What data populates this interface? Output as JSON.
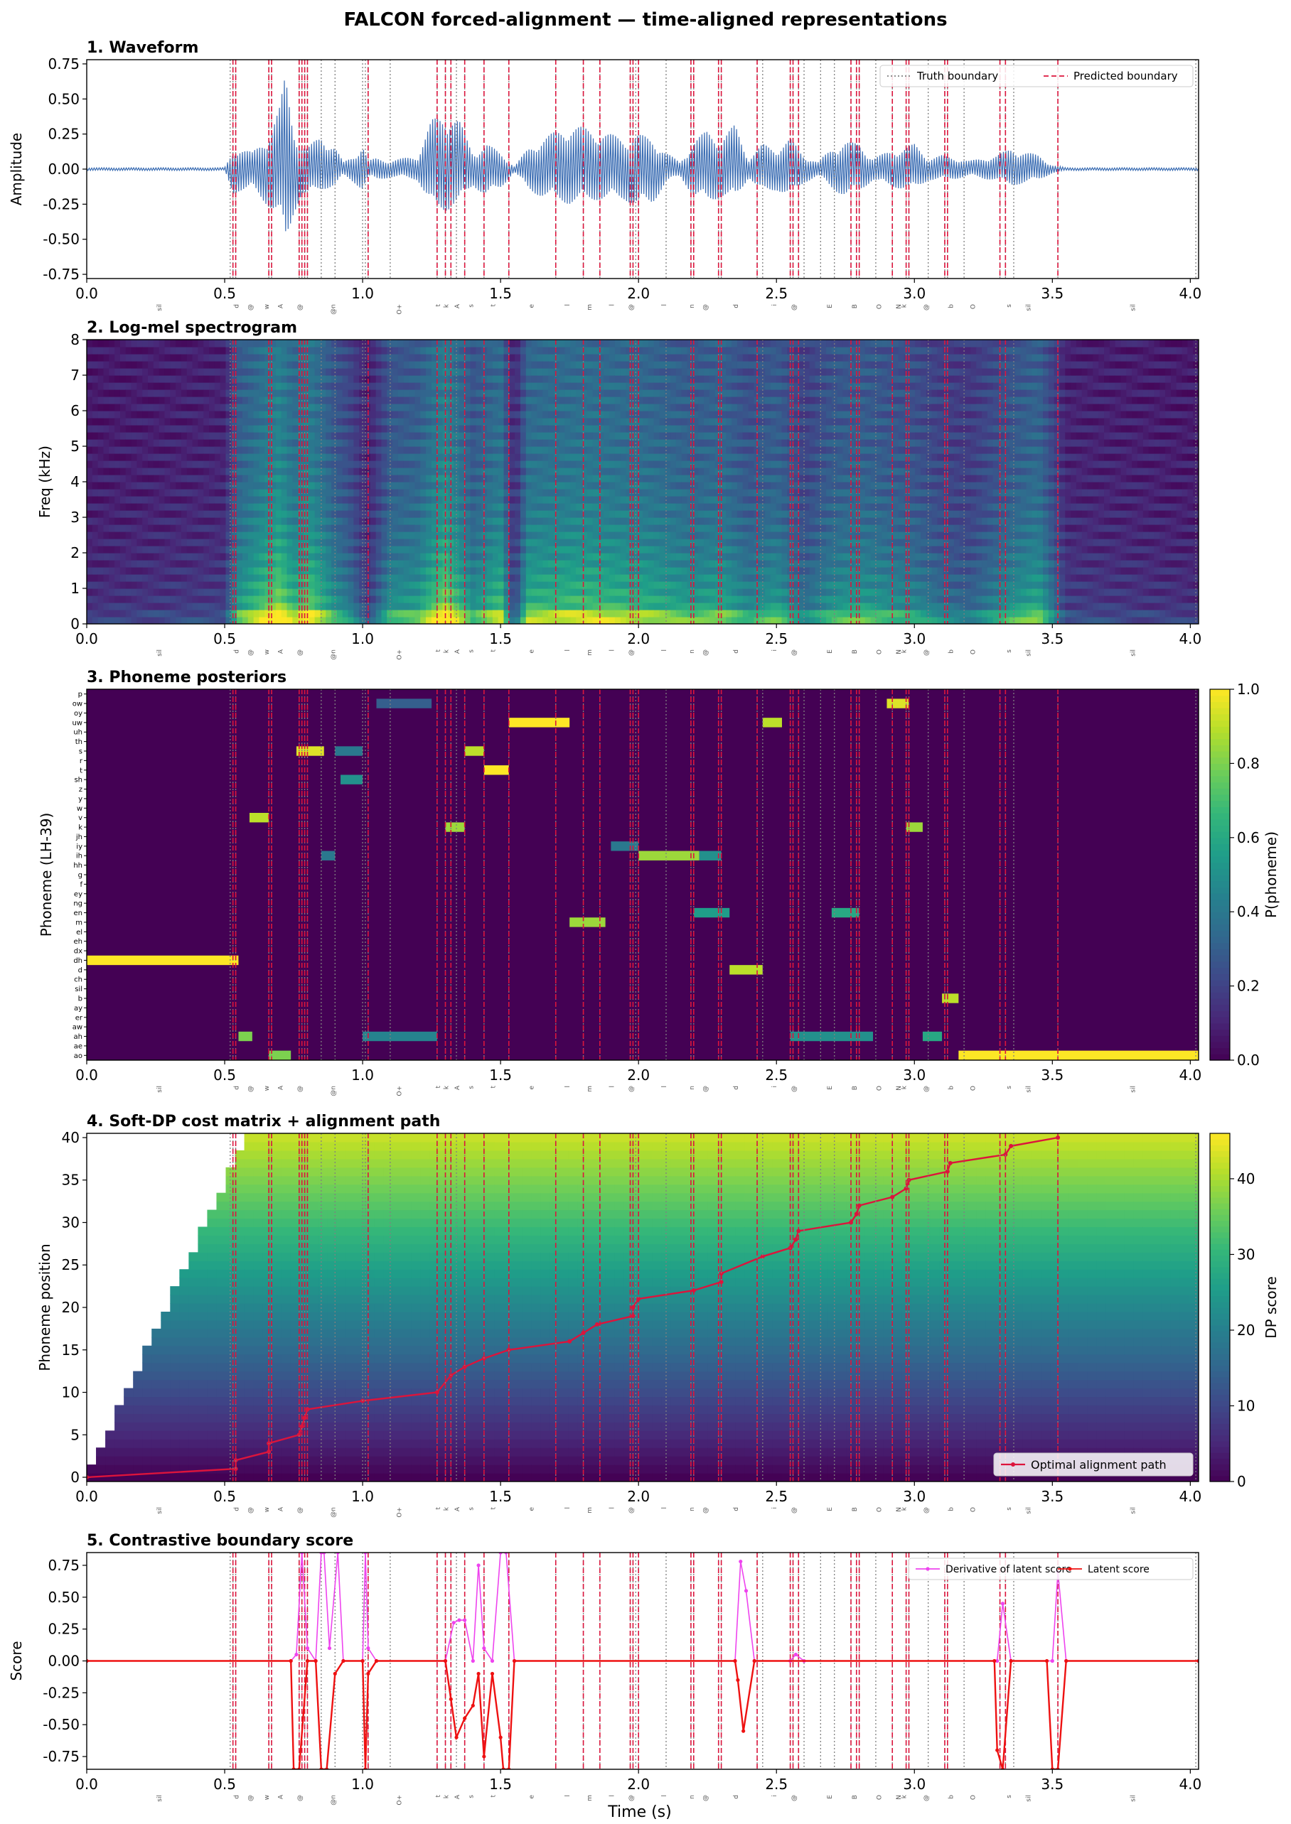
{
  "figure": {
    "title": "FALCON forced-alignment — time-aligned representations",
    "xlabel": "Time (s)"
  },
  "colors": {
    "waveform": "#3b6db3",
    "truth_boundary": "#808080",
    "predicted_boundary": "#dc143c",
    "alignment_path": "#dc143c",
    "derivative": "#ee44ee",
    "latent": "#ee1111"
  },
  "chart_data": [
    {
      "type": "line",
      "title": "1. Waveform",
      "ylabel": "Amplitude",
      "xlim": [
        0,
        4.03
      ],
      "ylim": [
        -0.78,
        0.78
      ],
      "x_ticks": [
        0.0,
        0.5,
        1.0,
        1.5,
        2.0,
        2.5,
        3.0,
        3.5,
        4.0
      ],
      "y_ticks": [
        -0.75,
        -0.5,
        -0.25,
        0.0,
        0.25,
        0.5,
        0.75
      ],
      "legend": {
        "placement": "upper-right",
        "entries": [
          "Truth boundary",
          "Predicted boundary"
        ]
      },
      "envelope": {
        "x": [
          0.0,
          0.5,
          0.53,
          0.55,
          0.6,
          0.65,
          0.7,
          0.72,
          0.75,
          0.78,
          0.8,
          0.85,
          0.9,
          0.93,
          0.97,
          1.0,
          1.02,
          1.05,
          1.1,
          1.15,
          1.2,
          1.25,
          1.3,
          1.35,
          1.4,
          1.45,
          1.5,
          1.55,
          1.6,
          1.65,
          1.75,
          1.85,
          1.95,
          2.0,
          2.05,
          2.1,
          2.15,
          2.2,
          2.25,
          2.3,
          2.35,
          2.4,
          2.45,
          2.5,
          2.55,
          2.6,
          2.65,
          2.7,
          2.75,
          2.8,
          2.85,
          2.9,
          2.95,
          3.0,
          3.05,
          3.1,
          3.15,
          3.2,
          3.25,
          3.3,
          3.35,
          3.45,
          3.5,
          3.55,
          4.03
        ],
        "upper": [
          0.01,
          0.01,
          0.13,
          0.16,
          0.12,
          0.22,
          0.45,
          0.68,
          0.3,
          0.18,
          0.15,
          0.25,
          0.16,
          0.05,
          0.1,
          0.18,
          0.06,
          0.08,
          0.06,
          0.08,
          0.1,
          0.35,
          0.42,
          0.35,
          0.12,
          0.18,
          0.12,
          0.02,
          0.15,
          0.22,
          0.32,
          0.28,
          0.22,
          0.25,
          0.22,
          0.12,
          0.05,
          0.2,
          0.28,
          0.22,
          0.32,
          0.08,
          0.18,
          0.15,
          0.22,
          0.1,
          0.05,
          0.15,
          0.2,
          0.18,
          0.08,
          0.12,
          0.15,
          0.18,
          0.08,
          0.1,
          0.08,
          0.06,
          0.08,
          0.1,
          0.15,
          0.1,
          0.03,
          0.01,
          0.01
        ],
        "lower": [
          -0.01,
          -0.01,
          -0.18,
          -0.16,
          -0.15,
          -0.25,
          -0.35,
          -0.6,
          -0.32,
          -0.18,
          -0.2,
          -0.15,
          -0.12,
          -0.05,
          -0.1,
          -0.15,
          -0.06,
          -0.08,
          -0.06,
          -0.06,
          -0.08,
          -0.28,
          -0.3,
          -0.25,
          -0.12,
          -0.2,
          -0.14,
          -0.02,
          -0.15,
          -0.2,
          -0.25,
          -0.22,
          -0.22,
          -0.28,
          -0.25,
          -0.1,
          -0.05,
          -0.2,
          -0.24,
          -0.2,
          -0.22,
          -0.06,
          -0.18,
          -0.15,
          -0.2,
          -0.1,
          -0.05,
          -0.14,
          -0.2,
          -0.16,
          -0.08,
          -0.12,
          -0.14,
          -0.15,
          -0.08,
          -0.08,
          -0.07,
          -0.05,
          -0.07,
          -0.08,
          -0.12,
          -0.08,
          -0.03,
          -0.01,
          -0.01
        ]
      }
    },
    {
      "type": "heatmap",
      "title": "2. Log-mel spectrogram",
      "ylabel": "Freq (kHz)",
      "xlim": [
        0,
        4.03
      ],
      "ylim": [
        0,
        8
      ],
      "colormap": "viridis",
      "x_ticks": [
        0.0,
        0.5,
        1.0,
        1.5,
        2.0,
        2.5,
        3.0,
        3.5,
        4.0
      ],
      "y_ticks": [
        0,
        1,
        2,
        3,
        4,
        5,
        6,
        7,
        8
      ],
      "energy_profile": {
        "x": [
          0.0,
          0.5,
          0.55,
          0.7,
          0.75,
          0.8,
          0.9,
          0.95,
          1.02,
          1.1,
          1.2,
          1.3,
          1.4,
          1.5,
          1.55,
          1.6,
          1.8,
          2.0,
          2.2,
          2.3,
          2.4,
          2.5,
          2.6,
          2.7,
          2.8,
          3.0,
          3.1,
          3.2,
          3.35,
          3.45,
          3.55,
          4.03
        ],
        "level": [
          0.15,
          0.2,
          0.6,
          0.9,
          0.7,
          0.85,
          0.55,
          0.45,
          0.2,
          0.55,
          0.6,
          0.9,
          0.55,
          0.75,
          0.2,
          0.7,
          0.75,
          0.7,
          0.6,
          0.65,
          0.5,
          0.6,
          0.4,
          0.55,
          0.6,
          0.5,
          0.4,
          0.35,
          0.55,
          0.65,
          0.2,
          0.15
        ]
      }
    },
    {
      "type": "heatmap",
      "title": "3. Phoneme posteriors",
      "ylabel": "Phoneme (LH-39)",
      "xlim": [
        0,
        4.03
      ],
      "colormap": "viridis",
      "colorbar": {
        "label": "P(phoneme)",
        "range": [
          0,
          1
        ],
        "ticks": [
          "0.0",
          "0.2",
          "0.4",
          "0.6",
          "0.8",
          "1.0"
        ]
      },
      "x_ticks": [
        0.0,
        0.5,
        1.0,
        1.5,
        2.0,
        2.5,
        3.0,
        3.5,
        4.0
      ],
      "phonemes": [
        "p",
        "ow",
        "oy",
        "uw",
        "uh",
        "th",
        "s",
        "r",
        "t",
        "sh",
        "z",
        "y",
        "w",
        "v",
        "k",
        "jh",
        "iy",
        "ih",
        "hh",
        "g",
        "f",
        "ey",
        "ng",
        "en",
        "m",
        "el",
        "eh",
        "dx",
        "dh",
        "d",
        "ch",
        "sil",
        "b",
        "ay",
        "er",
        "aw",
        "ah",
        "ae",
        "ao"
      ],
      "segments": [
        {
          "phoneme": "dh",
          "start": 0.0,
          "end": 0.55,
          "p": 1.0
        },
        {
          "phoneme": "ah",
          "start": 0.55,
          "end": 0.6,
          "p": 0.8
        },
        {
          "phoneme": "v",
          "start": 0.59,
          "end": 0.66,
          "p": 0.9
        },
        {
          "phoneme": "ao",
          "start": 0.66,
          "end": 0.74,
          "p": 0.8
        },
        {
          "phoneme": "s",
          "start": 0.76,
          "end": 0.86,
          "p": 0.95
        },
        {
          "phoneme": "s",
          "start": 0.9,
          "end": 1.0,
          "p": 0.4
        },
        {
          "phoneme": "sh",
          "start": 0.92,
          "end": 1.0,
          "p": 0.5
        },
        {
          "phoneme": "ih",
          "start": 0.85,
          "end": 0.9,
          "p": 0.4
        },
        {
          "phoneme": "ah",
          "start": 1.0,
          "end": 1.27,
          "p": 0.45
        },
        {
          "phoneme": "ow",
          "start": 1.05,
          "end": 1.25,
          "p": 0.3
        },
        {
          "phoneme": "k",
          "start": 1.3,
          "end": 1.37,
          "p": 0.85
        },
        {
          "phoneme": "s",
          "start": 1.37,
          "end": 1.44,
          "p": 0.9
        },
        {
          "phoneme": "t",
          "start": 1.44,
          "end": 1.53,
          "p": 1.0
        },
        {
          "phoneme": "uw",
          "start": 1.53,
          "end": 1.75,
          "p": 1.0
        },
        {
          "phoneme": "m",
          "start": 1.75,
          "end": 1.88,
          "p": 0.85
        },
        {
          "phoneme": "iy",
          "start": 1.9,
          "end": 2.0,
          "p": 0.4
        },
        {
          "phoneme": "ih",
          "start": 2.0,
          "end": 2.22,
          "p": 0.85
        },
        {
          "phoneme": "ih",
          "start": 2.22,
          "end": 2.3,
          "p": 0.5
        },
        {
          "phoneme": "en",
          "start": 2.2,
          "end": 2.33,
          "p": 0.55
        },
        {
          "phoneme": "d",
          "start": 2.33,
          "end": 2.45,
          "p": 0.9
        },
        {
          "phoneme": "uw",
          "start": 2.45,
          "end": 2.52,
          "p": 0.9
        },
        {
          "phoneme": "ah",
          "start": 2.55,
          "end": 2.85,
          "p": 0.5
        },
        {
          "phoneme": "en",
          "start": 2.7,
          "end": 2.8,
          "p": 0.6
        },
        {
          "phoneme": "ow",
          "start": 2.9,
          "end": 2.98,
          "p": 0.95
        },
        {
          "phoneme": "k",
          "start": 2.97,
          "end": 3.03,
          "p": 0.85
        },
        {
          "phoneme": "ah",
          "start": 3.03,
          "end": 3.1,
          "p": 0.6
        },
        {
          "phoneme": "b",
          "start": 3.1,
          "end": 3.16,
          "p": 0.9
        },
        {
          "phoneme": "ao",
          "start": 3.16,
          "end": 4.03,
          "p": 1.0
        }
      ]
    },
    {
      "type": "heatmap",
      "title": "4. Soft-DP cost matrix + alignment path",
      "ylabel": "Phoneme position",
      "xlim": [
        0,
        4.03
      ],
      "ylim": [
        -0.5,
        40.5
      ],
      "colormap": "viridis",
      "colorbar": {
        "label": "DP score",
        "range": [
          0,
          46
        ],
        "ticks": [
          "0",
          "10",
          "20",
          "30",
          "40"
        ]
      },
      "x_ticks": [
        0.0,
        0.5,
        1.0,
        1.5,
        2.0,
        2.5,
        3.0,
        3.5,
        4.0
      ],
      "y_ticks": [
        0,
        5,
        10,
        15,
        20,
        25,
        30,
        35,
        40
      ],
      "legend": {
        "placement": "lower-right",
        "entries": [
          "Optimal alignment path"
        ]
      },
      "path": {
        "x": [
          0.0,
          0.54,
          0.54,
          0.66,
          0.66,
          0.77,
          0.78,
          0.79,
          0.8,
          1.0,
          1.27,
          1.32,
          1.37,
          1.44,
          1.53,
          1.75,
          1.8,
          1.85,
          1.98,
          1.98,
          2.0,
          2.2,
          2.3,
          2.3,
          2.45,
          2.55,
          2.57,
          2.58,
          2.77,
          2.79,
          2.8,
          2.92,
          2.97,
          2.98,
          3.12,
          3.13,
          3.33,
          3.35,
          3.52
        ],
        "y": [
          0,
          1,
          2,
          3,
          4,
          5,
          6,
          7,
          8,
          9,
          10,
          12,
          13,
          14,
          15,
          16,
          17,
          18,
          19,
          20,
          21,
          22,
          23,
          24,
          26,
          27,
          28,
          29,
          30,
          31,
          32,
          33,
          34,
          35,
          36,
          37,
          38,
          39,
          40
        ]
      }
    },
    {
      "type": "line",
      "title": "5. Contrastive boundary score",
      "ylabel": "Score",
      "xlim": [
        0,
        4.03
      ],
      "ylim": [
        -0.85,
        0.85
      ],
      "x_ticks": [
        0.0,
        0.5,
        1.0,
        1.5,
        2.0,
        2.5,
        3.0,
        3.5,
        4.0
      ],
      "y_ticks": [
        -0.75,
        -0.5,
        -0.25,
        0.0,
        0.25,
        0.5,
        0.75
      ],
      "legend": {
        "placement": "upper-right",
        "entries": [
          "Derivative of latent score",
          "Latent score"
        ]
      },
      "series": [
        {
          "name": "Derivative of latent score",
          "x": [
            0.0,
            0.74,
            0.76,
            0.78,
            0.8,
            0.83,
            0.85,
            0.86,
            0.88,
            0.91,
            0.93,
            1.0,
            1.01,
            1.02,
            1.05,
            1.3,
            1.33,
            1.35,
            1.37,
            1.4,
            1.42,
            1.44,
            1.47,
            1.5,
            1.52,
            1.55,
            2.35,
            2.37,
            2.39,
            2.42,
            2.55,
            2.57,
            2.6,
            3.3,
            3.32,
            3.35,
            3.5,
            3.52,
            3.55,
            4.03
          ],
          "y": [
            0.0,
            0.0,
            0.05,
            0.85,
            0.1,
            0.0,
            0.85,
            0.85,
            0.1,
            0.85,
            0.0,
            0.0,
            0.85,
            0.1,
            0.0,
            0.0,
            0.3,
            0.32,
            0.32,
            0.0,
            0.75,
            0.1,
            0.0,
            0.85,
            0.85,
            0.0,
            0.0,
            0.78,
            0.55,
            0.0,
            0.0,
            0.05,
            0.0,
            0.0,
            0.45,
            0.0,
            0.0,
            0.7,
            0.0,
            0.0
          ]
        },
        {
          "name": "Latent score",
          "x": [
            0.0,
            0.74,
            0.75,
            0.77,
            0.8,
            0.83,
            0.85,
            0.87,
            0.9,
            0.93,
            1.0,
            1.01,
            1.02,
            1.05,
            1.3,
            1.32,
            1.34,
            1.37,
            1.4,
            1.42,
            1.44,
            1.47,
            1.5,
            1.51,
            1.53,
            1.55,
            2.35,
            2.36,
            2.38,
            2.42,
            3.29,
            3.3,
            3.32,
            3.35,
            3.48,
            3.5,
            3.52,
            3.55,
            4.03
          ],
          "y": [
            0.0,
            0.0,
            -0.85,
            -0.85,
            0.0,
            0.0,
            -0.85,
            -0.85,
            -0.1,
            0.0,
            0.0,
            -0.85,
            -0.1,
            0.0,
            0.0,
            -0.3,
            -0.6,
            -0.45,
            -0.35,
            -0.1,
            -0.75,
            -0.1,
            -0.6,
            -0.85,
            -0.85,
            0.0,
            0.0,
            -0.15,
            -0.55,
            0.0,
            0.0,
            -0.7,
            -0.85,
            0.0,
            0.0,
            -0.85,
            -0.85,
            0.0,
            0.0
          ]
        }
      ]
    }
  ],
  "boundaries": {
    "truth": [
      0.52,
      0.53,
      0.54,
      0.66,
      0.67,
      0.77,
      0.78,
      0.79,
      0.8,
      0.85,
      0.9,
      1.0,
      1.01,
      1.02,
      1.1,
      1.27,
      1.3,
      1.32,
      1.34,
      1.37,
      1.44,
      1.53,
      1.7,
      1.8,
      1.86,
      1.97,
      1.98,
      1.99,
      2.0,
      2.1,
      2.19,
      2.2,
      2.29,
      2.3,
      2.43,
      2.45,
      2.55,
      2.56,
      2.58,
      2.6,
      2.66,
      2.71,
      2.77,
      2.79,
      2.8,
      2.86,
      2.92,
      2.97,
      2.98,
      3.05,
      3.11,
      3.12,
      3.18,
      3.31,
      3.33,
      3.36,
      3.52,
      4.02
    ],
    "predicted": [
      0.53,
      0.54,
      0.66,
      0.67,
      0.77,
      0.78,
      0.79,
      0.8,
      1.02,
      1.27,
      1.3,
      1.32,
      1.37,
      1.44,
      1.53,
      1.7,
      1.8,
      1.86,
      1.97,
      1.98,
      2.0,
      2.19,
      2.2,
      2.29,
      2.3,
      2.43,
      2.55,
      2.56,
      2.58,
      2.77,
      2.79,
      2.8,
      2.92,
      2.97,
      2.98,
      3.11,
      3.12,
      3.31,
      3.33,
      3.52
    ]
  },
  "phone_labels": [
    {
      "t": 0.27,
      "label": "sil"
    },
    {
      "t": 0.55,
      "label": "d"
    },
    {
      "t": 0.6,
      "label": "@"
    },
    {
      "t": 0.66,
      "label": "w"
    },
    {
      "t": 0.71,
      "label": "A"
    },
    {
      "t": 0.78,
      "label": "@"
    },
    {
      "t": 0.9,
      "label": "@n"
    },
    {
      "t": 1.14,
      "label": "O+"
    },
    {
      "t": 1.28,
      "label": "t"
    },
    {
      "t": 1.31,
      "label": "k"
    },
    {
      "t": 1.35,
      "label": "A"
    },
    {
      "t": 1.4,
      "label": "s"
    },
    {
      "t": 1.48,
      "label": "t"
    },
    {
      "t": 1.62,
      "label": "e"
    },
    {
      "t": 1.75,
      "label": "l"
    },
    {
      "t": 1.83,
      "label": "m"
    },
    {
      "t": 1.91,
      "label": "l"
    },
    {
      "t": 1.98,
      "label": "@"
    },
    {
      "t": 2.1,
      "label": "l"
    },
    {
      "t": 2.2,
      "label": "n"
    },
    {
      "t": 2.25,
      "label": "@"
    },
    {
      "t": 2.36,
      "label": "d"
    },
    {
      "t": 2.5,
      "label": "i"
    },
    {
      "t": 2.57,
      "label": "@"
    },
    {
      "t": 2.7,
      "label": "E"
    },
    {
      "t": 2.79,
      "label": "B"
    },
    {
      "t": 2.88,
      "label": "O"
    },
    {
      "t": 2.95,
      "label": "N"
    },
    {
      "t": 2.97,
      "label": "k"
    },
    {
      "t": 3.05,
      "label": "@"
    },
    {
      "t": 3.14,
      "label": "b"
    },
    {
      "t": 3.22,
      "label": "O"
    },
    {
      "t": 3.35,
      "label": "s"
    },
    {
      "t": 3.42,
      "label": "sil"
    },
    {
      "t": 3.8,
      "label": "sil"
    }
  ]
}
